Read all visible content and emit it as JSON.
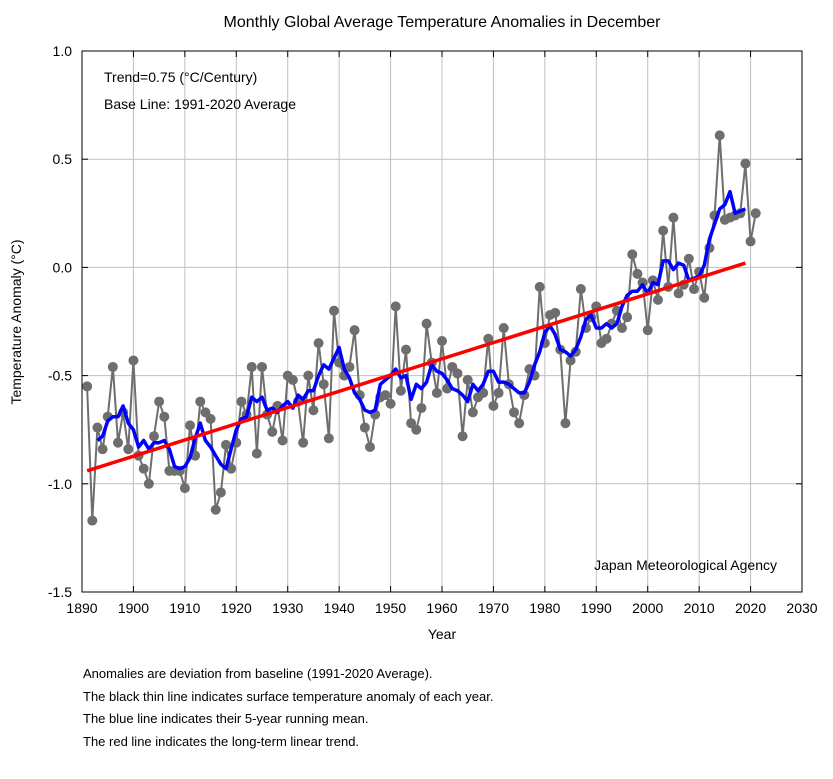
{
  "chart_data": {
    "type": "line",
    "title": "Monthly Global Average Temperature Anomalies in December",
    "xlabel": "Year",
    "ylabel": "Temperature Anomaly (°C)",
    "xlim": [
      1890,
      2030
    ],
    "ylim": [
      -1.5,
      1.0
    ],
    "xticks": [
      1890,
      1900,
      1910,
      1920,
      1930,
      1940,
      1950,
      1960,
      1970,
      1980,
      1990,
      2000,
      2010,
      2020,
      2030
    ],
    "xtick_labels": [
      "1890",
      "1900",
      "1910",
      "1920",
      "1930",
      "1940",
      "1950",
      "1960",
      "1970",
      "1980",
      "1990",
      "2000",
      "2010",
      "2020",
      "2030"
    ],
    "yticks": [
      -1.5,
      -1.0,
      -0.5,
      0.0,
      0.5,
      1.0
    ],
    "ytick_labels": [
      "-1.5",
      "-1.0",
      "-0.5",
      "0.0",
      "0.5",
      "1.0"
    ],
    "grid": true,
    "annotations": {
      "trend": "Trend=0.75 (°C/Century)",
      "baseline": "Base Line: 1991-2020 Average",
      "source": "Japan Meteorological Agency"
    },
    "colors": {
      "annual": "#6e6e6e",
      "running_mean": "#0000ff",
      "trend": "#ff0000",
      "grid": "#c0c0c0"
    },
    "series": [
      {
        "x": [
          1891,
          1892,
          1893,
          1894,
          1895,
          1896,
          1897,
          1898,
          1899,
          1900,
          1901,
          1902,
          1903,
          1904,
          1905,
          1906,
          1907,
          1908,
          1909,
          1910,
          1911,
          1912,
          1913,
          1914,
          1915,
          1916,
          1917,
          1918,
          1919,
          1920,
          1921,
          1922,
          1923,
          1924,
          1925,
          1926,
          1927,
          1928,
          1929,
          1930,
          1931,
          1932,
          1933,
          1934,
          1935,
          1936,
          1937,
          1938,
          1939,
          1940,
          1941,
          1942,
          1943,
          1944,
          1945,
          1946,
          1947,
          1948,
          1949,
          1950,
          1951,
          1952,
          1953,
          1954,
          1955,
          1956,
          1957,
          1958,
          1959,
          1960,
          1961,
          1962,
          1963,
          1964,
          1965,
          1966,
          1967,
          1968,
          1969,
          1970,
          1971,
          1972,
          1973,
          1974,
          1975,
          1976,
          1977,
          1978,
          1979,
          1980,
          1981,
          1982,
          1983,
          1984,
          1985,
          1986,
          1987,
          1988,
          1989,
          1990,
          1991,
          1992,
          1993,
          1994,
          1995,
          1996,
          1997,
          1998,
          1999,
          2000,
          2001,
          2002,
          2003,
          2004,
          2005,
          2006,
          2007,
          2008,
          2009,
          2010,
          2011,
          2012,
          2013,
          2014,
          2015,
          2016,
          2017,
          2018,
          2019,
          2020,
          2021
        ],
        "values": [
          -0.55,
          -1.17,
          -0.74,
          -0.84,
          -0.69,
          -0.46,
          -0.81,
          -0.67,
          -0.84,
          -0.43,
          -0.87,
          -0.93,
          -1.0,
          -0.78,
          -0.62,
          -0.69,
          -0.94,
          -0.94,
          -0.94,
          -1.02,
          -0.73,
          -0.87,
          -0.62,
          -0.67,
          -0.7,
          -1.12,
          -1.04,
          -0.82,
          -0.93,
          -0.81,
          -0.62,
          -0.68,
          -0.46,
          -0.86,
          -0.46,
          -0.68,
          -0.76,
          -0.64,
          -0.8,
          -0.5,
          -0.52,
          -0.62,
          -0.81,
          -0.5,
          -0.66,
          -0.35,
          -0.54,
          -0.79,
          -0.2,
          -0.44,
          -0.5,
          -0.46,
          -0.29,
          -0.59,
          -0.74,
          -0.83,
          -0.68,
          -0.6,
          -0.59,
          -0.63,
          -0.18,
          -0.57,
          -0.38,
          -0.72,
          -0.75,
          -0.65,
          -0.26,
          -0.44,
          -0.58,
          -0.34,
          -0.56,
          -0.46,
          -0.49,
          -0.78,
          -0.52,
          -0.67,
          -0.6,
          -0.58,
          -0.33,
          -0.64,
          -0.58,
          -0.28,
          -0.54,
          -0.67,
          -0.72,
          -0.59,
          -0.47,
          -0.5,
          -0.09,
          -0.35,
          -0.22,
          -0.21,
          -0.38,
          -0.72,
          -0.43,
          -0.39,
          -0.1,
          -0.28,
          -0.23,
          -0.18,
          -0.35,
          -0.33,
          -0.26,
          -0.2,
          -0.28,
          -0.23,
          0.06,
          -0.03,
          -0.07,
          -0.29,
          -0.06,
          -0.15,
          0.17,
          -0.09,
          0.23,
          -0.12,
          -0.08,
          0.04,
          -0.1,
          -0.02,
          -0.14,
          0.09,
          0.24,
          0.61,
          0.22,
          0.23,
          0.24,
          0.25,
          0.48,
          0.12,
          0.25
        ]
      },
      {
        "name": "5-year running mean",
        "x": [
          1893,
          1894,
          1895,
          1896,
          1897,
          1898,
          1899,
          1900,
          1901,
          1902,
          1903,
          1904,
          1905,
          1906,
          1907,
          1908,
          1909,
          1910,
          1911,
          1912,
          1913,
          1914,
          1915,
          1916,
          1917,
          1918,
          1919,
          1920,
          1921,
          1922,
          1923,
          1924,
          1925,
          1926,
          1927,
          1928,
          1929,
          1930,
          1931,
          1932,
          1933,
          1934,
          1935,
          1936,
          1937,
          1938,
          1939,
          1940,
          1941,
          1942,
          1943,
          1944,
          1945,
          1946,
          1947,
          1948,
          1949,
          1950,
          1951,
          1952,
          1953,
          1954,
          1955,
          1956,
          1957,
          1958,
          1959,
          1960,
          1961,
          1962,
          1963,
          1964,
          1965,
          1966,
          1967,
          1968,
          1969,
          1970,
          1971,
          1972,
          1973,
          1974,
          1975,
          1976,
          1977,
          1978,
          1979,
          1980,
          1981,
          1982,
          1983,
          1984,
          1985,
          1986,
          1987,
          1988,
          1989,
          1990,
          1991,
          1992,
          1993,
          1994,
          1995,
          1996,
          1997,
          1998,
          1999,
          2000,
          2001,
          2002,
          2003,
          2004,
          2005,
          2006,
          2007,
          2008,
          2009,
          2010,
          2011,
          2012,
          2013,
          2014,
          2015,
          2016,
          2017,
          2018,
          2019
        ],
        "values": [
          -0.8,
          -0.78,
          -0.71,
          -0.69,
          -0.69,
          -0.64,
          -0.72,
          -0.75,
          -0.83,
          -0.8,
          -0.84,
          -0.81,
          -0.81,
          -0.8,
          -0.84,
          -0.92,
          -0.93,
          -0.92,
          -0.88,
          -0.79,
          -0.72,
          -0.8,
          -0.83,
          -0.87,
          -0.91,
          -0.93,
          -0.84,
          -0.75,
          -0.7,
          -0.69,
          -0.6,
          -0.62,
          -0.6,
          -0.66,
          -0.65,
          -0.67,
          -0.64,
          -0.62,
          -0.65,
          -0.59,
          -0.61,
          -0.57,
          -0.57,
          -0.5,
          -0.45,
          -0.47,
          -0.42,
          -0.37,
          -0.47,
          -0.51,
          -0.58,
          -0.61,
          -0.66,
          -0.67,
          -0.66,
          -0.54,
          -0.52,
          -0.5,
          -0.47,
          -0.51,
          -0.5,
          -0.61,
          -0.54,
          -0.56,
          -0.53,
          -0.45,
          -0.48,
          -0.49,
          -0.52,
          -0.56,
          -0.57,
          -0.59,
          -0.62,
          -0.54,
          -0.57,
          -0.54,
          -0.48,
          -0.48,
          -0.53,
          -0.53,
          -0.54,
          -0.56,
          -0.58,
          -0.58,
          -0.53,
          -0.45,
          -0.39,
          -0.3,
          -0.27,
          -0.31,
          -0.38,
          -0.39,
          -0.41,
          -0.38,
          -0.32,
          -0.24,
          -0.22,
          -0.28,
          -0.28,
          -0.26,
          -0.28,
          -0.26,
          -0.18,
          -0.13,
          -0.11,
          -0.11,
          -0.08,
          -0.12,
          -0.07,
          -0.08,
          0.03,
          0.03,
          -0.01,
          0.02,
          0.01,
          -0.06,
          -0.05,
          -0.04,
          0.01,
          0.13,
          0.2,
          0.27,
          0.29,
          0.35,
          0.25,
          0.26,
          0.27
        ]
      },
      {
        "name": "Linear trend",
        "x": [
          1891,
          2019
        ],
        "values": [
          -0.94,
          0.02
        ]
      }
    ]
  },
  "notes": [
    "Anomalies are deviation from baseline (1991-2020 Average).",
    "The black thin line indicates surface temperature anomaly of each year.",
    "The blue line indicates their 5-year running mean.",
    "The red line indicates the long-term linear trend."
  ]
}
